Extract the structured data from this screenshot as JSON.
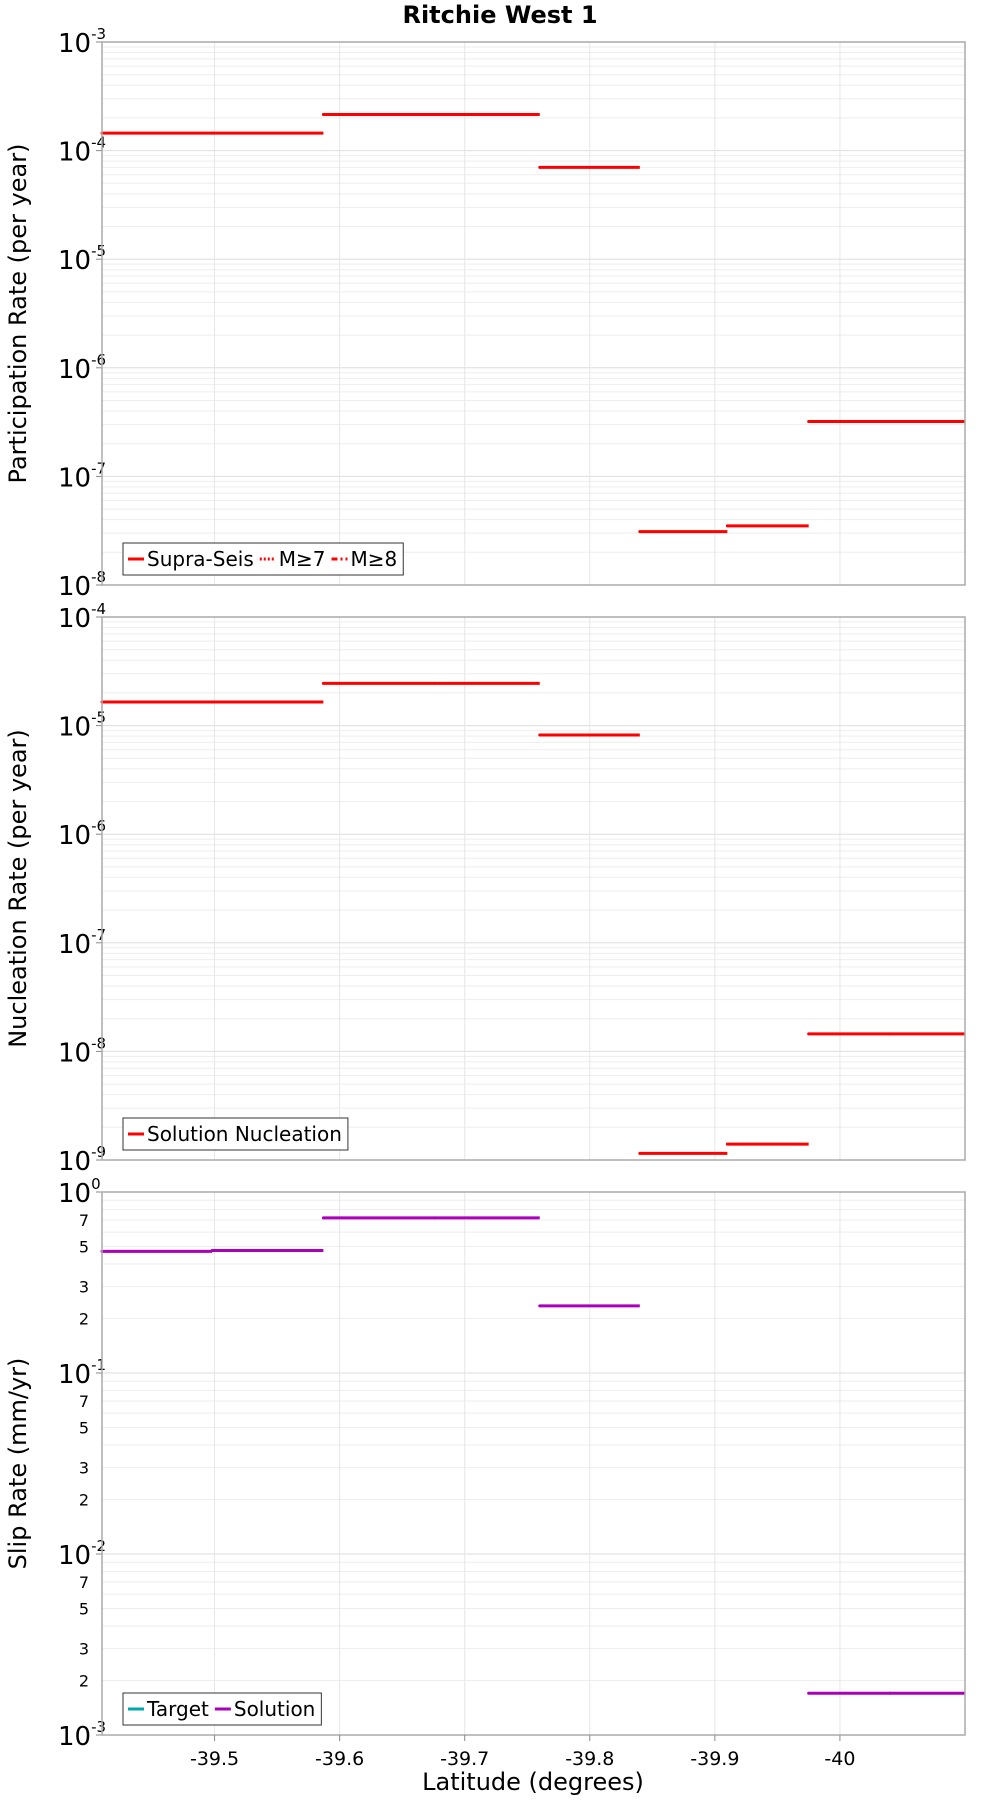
{
  "figure": {
    "title": "Ritchie West 1",
    "xlabel": "Latitude (degrees)"
  },
  "chart_data": [
    {
      "type": "line",
      "ylabel": "Participation Rate (per year)",
      "yscale": "log",
      "ylim": [
        1e-08,
        0.001
      ],
      "xlim": [
        -39.41,
        -40.1
      ],
      "grid": true,
      "legend_position": "bottom-left",
      "y_ticks": [
        {
          "base": "10",
          "exp": "-8",
          "value": 1e-08
        },
        {
          "base": "10",
          "exp": "-7",
          "value": 1e-07
        },
        {
          "base": "10",
          "exp": "-6",
          "value": 1e-06
        },
        {
          "base": "10",
          "exp": "-5",
          "value": 1e-05
        },
        {
          "base": "10",
          "exp": "-4",
          "value": 0.0001
        },
        {
          "base": "10",
          "exp": "-3",
          "value": 0.001
        }
      ],
      "legend": [
        {
          "label": "Supra-Seis",
          "color": "#ff0000",
          "style": "solid"
        },
        {
          "label": "M≥7",
          "color": "#ff0000",
          "style": "dotted"
        },
        {
          "label": "M≥8",
          "color": "#ff0000",
          "style": "dashdot"
        }
      ],
      "series": [
        {
          "name": "Supra-Seis",
          "color": "#ff0000",
          "segments": [
            {
              "x0": -39.41,
              "x1": -39.498,
              "y": 0.000145
            },
            {
              "x0": -39.498,
              "x1": -39.587,
              "y": 0.000145
            },
            {
              "x0": -39.587,
              "x1": -39.676,
              "y": 0.000215
            },
            {
              "x0": -39.676,
              "x1": -39.76,
              "y": 0.000215
            },
            {
              "x0": -39.76,
              "x1": -39.84,
              "y": 7e-05
            },
            {
              "x0": -39.84,
              "x1": -39.91,
              "y": 3.1e-08
            },
            {
              "x0": -39.91,
              "x1": -39.975,
              "y": 3.5e-08
            },
            {
              "x0": -39.975,
              "x1": -40.04,
              "y": 3.2e-07
            },
            {
              "x0": -40.04,
              "x1": -40.1,
              "y": 3.2e-07
            }
          ]
        }
      ]
    },
    {
      "type": "line",
      "ylabel": "Nucleation Rate (per year)",
      "yscale": "log",
      "ylim": [
        1e-09,
        0.0001
      ],
      "xlim": [
        -39.41,
        -40.1
      ],
      "grid": true,
      "legend_position": "bottom-left",
      "y_ticks": [
        {
          "base": "10",
          "exp": "-9",
          "value": 1e-09
        },
        {
          "base": "10",
          "exp": "-8",
          "value": 1e-08
        },
        {
          "base": "10",
          "exp": "-7",
          "value": 1e-07
        },
        {
          "base": "10",
          "exp": "-6",
          "value": 1e-06
        },
        {
          "base": "10",
          "exp": "-5",
          "value": 1e-05
        },
        {
          "base": "10",
          "exp": "-4",
          "value": 0.0001
        }
      ],
      "legend": [
        {
          "label": "Solution Nucleation",
          "color": "#ff0000",
          "style": "solid"
        }
      ],
      "series": [
        {
          "name": "Solution Nucleation",
          "color": "#ff0000",
          "segments": [
            {
              "x0": -39.41,
              "x1": -39.498,
              "y": 1.65e-05
            },
            {
              "x0": -39.498,
              "x1": -39.587,
              "y": 1.65e-05
            },
            {
              "x0": -39.587,
              "x1": -39.676,
              "y": 2.45e-05
            },
            {
              "x0": -39.676,
              "x1": -39.76,
              "y": 2.45e-05
            },
            {
              "x0": -39.76,
              "x1": -39.84,
              "y": 8.2e-06
            },
            {
              "x0": -39.84,
              "x1": -39.91,
              "y": 1.15e-09
            },
            {
              "x0": -39.91,
              "x1": -39.975,
              "y": 1.4e-09
            },
            {
              "x0": -39.975,
              "x1": -40.04,
              "y": 1.45e-08
            },
            {
              "x0": -40.04,
              "x1": -40.1,
              "y": 1.45e-08
            }
          ]
        }
      ]
    },
    {
      "type": "line",
      "ylabel": "Slip Rate (mm/yr)",
      "yscale": "log",
      "ylim": [
        0.001,
        1
      ],
      "xlim": [
        -39.41,
        -40.1
      ],
      "grid": true,
      "legend_position": "bottom-left",
      "y_ticks": [
        {
          "base": "10",
          "exp": "-3",
          "value": 0.001
        },
        {
          "base": "10",
          "exp": "-2",
          "value": 0.01
        },
        {
          "base": "10",
          "exp": "-1",
          "value": 0.1
        },
        {
          "base": "10",
          "exp": "0",
          "value": 1
        }
      ],
      "y_minor_ticks": [
        {
          "label": "2",
          "value": 0.002
        },
        {
          "label": "3",
          "value": 0.003
        },
        {
          "label": "5",
          "value": 0.005
        },
        {
          "label": "7",
          "value": 0.007
        },
        {
          "label": "2",
          "value": 0.02
        },
        {
          "label": "3",
          "value": 0.03
        },
        {
          "label": "5",
          "value": 0.05
        },
        {
          "label": "7",
          "value": 0.07
        },
        {
          "label": "2",
          "value": 0.2
        },
        {
          "label": "3",
          "value": 0.3
        },
        {
          "label": "5",
          "value": 0.5
        },
        {
          "label": "7",
          "value": 0.7
        }
      ],
      "legend": [
        {
          "label": "Target",
          "color": "#00aaaa",
          "style": "solid"
        },
        {
          "label": "Solution",
          "color": "#aa00bb",
          "style": "solid"
        }
      ],
      "series": [
        {
          "name": "Solution",
          "color": "#aa00bb",
          "segments": [
            {
              "x0": -39.41,
              "x1": -39.498,
              "y": 0.47
            },
            {
              "x0": -39.498,
              "x1": -39.587,
              "y": 0.475
            },
            {
              "x0": -39.587,
              "x1": -39.676,
              "y": 0.72
            },
            {
              "x0": -39.676,
              "x1": -39.76,
              "y": 0.72
            },
            {
              "x0": -39.76,
              "x1": -39.84,
              "y": 0.235
            },
            {
              "x0": -39.975,
              "x1": -40.04,
              "y": 0.0017
            },
            {
              "x0": -40.04,
              "x1": -40.1,
              "y": 0.0017
            }
          ]
        }
      ]
    }
  ],
  "x_ticks": [
    {
      "label": "-39.5",
      "value": -39.5
    },
    {
      "label": "-39.6",
      "value": -39.6
    },
    {
      "label": "-39.7",
      "value": -39.7
    },
    {
      "label": "-39.8",
      "value": -39.8
    },
    {
      "label": "-39.9",
      "value": -39.9
    },
    {
      "label": "-40",
      "value": -40.0
    }
  ]
}
